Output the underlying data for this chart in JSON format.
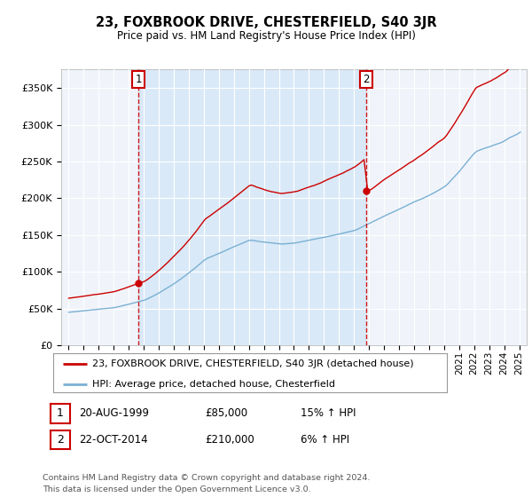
{
  "title": "23, FOXBROOK DRIVE, CHESTERFIELD, S40 3JR",
  "subtitle": "Price paid vs. HM Land Registry's House Price Index (HPI)",
  "legend_line1": "23, FOXBROOK DRIVE, CHESTERFIELD, S40 3JR (detached house)",
  "legend_line2": "HPI: Average price, detached house, Chesterfield",
  "footnote": "Contains HM Land Registry data © Crown copyright and database right 2024.\nThis data is licensed under the Open Government Licence v3.0.",
  "annotation1_date": "20-AUG-1999",
  "annotation1_price": "£85,000",
  "annotation1_hpi": "15% ↑ HPI",
  "annotation1_year": 1999.64,
  "annotation1_value": 85000,
  "annotation2_date": "22-OCT-2014",
  "annotation2_price": "£210,000",
  "annotation2_hpi": "6% ↑ HPI",
  "annotation2_year": 2014.81,
  "annotation2_value": 210000,
  "hpi_color": "#7ab0d4",
  "sale_color": "#cc0000",
  "shade_color": "#d6e8f7",
  "plot_bg": "#f0f4fa",
  "grid_color": "#ffffff",
  "ylim": [
    0,
    375000
  ],
  "yticks": [
    0,
    50000,
    100000,
    150000,
    200000,
    250000,
    300000,
    350000
  ],
  "xlim_start": 1994.5,
  "xlim_end": 2025.5
}
